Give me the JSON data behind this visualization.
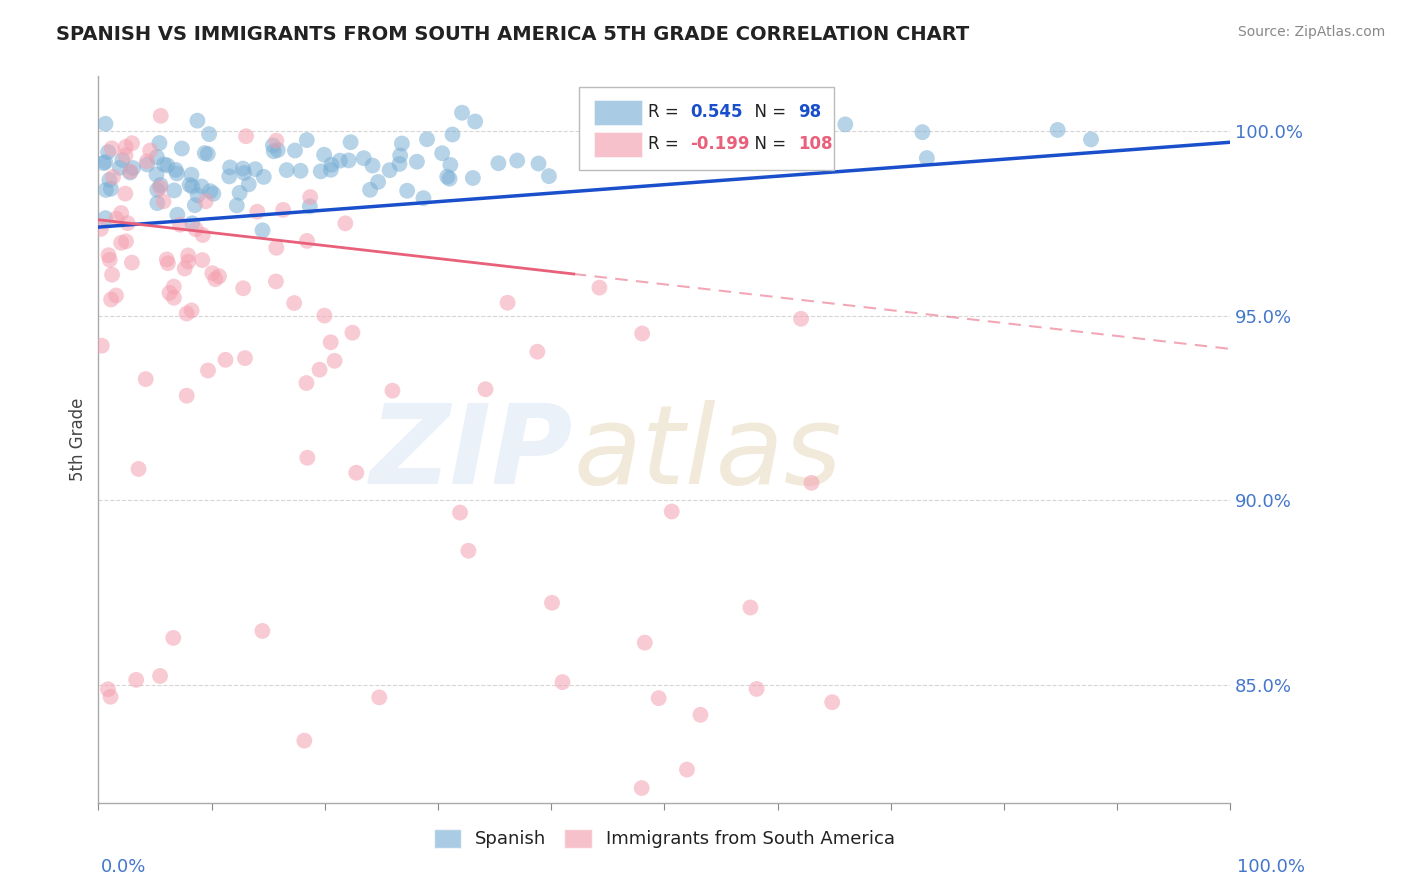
{
  "title": "SPANISH VS IMMIGRANTS FROM SOUTH AMERICA 5TH GRADE CORRELATION CHART",
  "source": "Source: ZipAtlas.com",
  "ylabel": "5th Grade",
  "y_ticks": [
    0.85,
    0.9,
    0.95,
    1.0
  ],
  "y_tick_labels": [
    "85.0%",
    "90.0%",
    "95.0%",
    "100.0%"
  ],
  "x_range": [
    0.0,
    1.0
  ],
  "y_range": [
    0.818,
    1.015
  ],
  "blue_R": 0.545,
  "blue_N": 98,
  "pink_R": -0.199,
  "pink_N": 108,
  "blue_color": "#7bafd4",
  "pink_color": "#f4a0b0",
  "blue_line_color": "#1a4fcc",
  "pink_line_color": "#e8607a",
  "legend_label_blue": "Spanish",
  "legend_label_pink": "Immigrants from South America",
  "title_color": "#222222",
  "axis_color": "#4477cc",
  "grid_color": "#cccccc",
  "seed": 7
}
